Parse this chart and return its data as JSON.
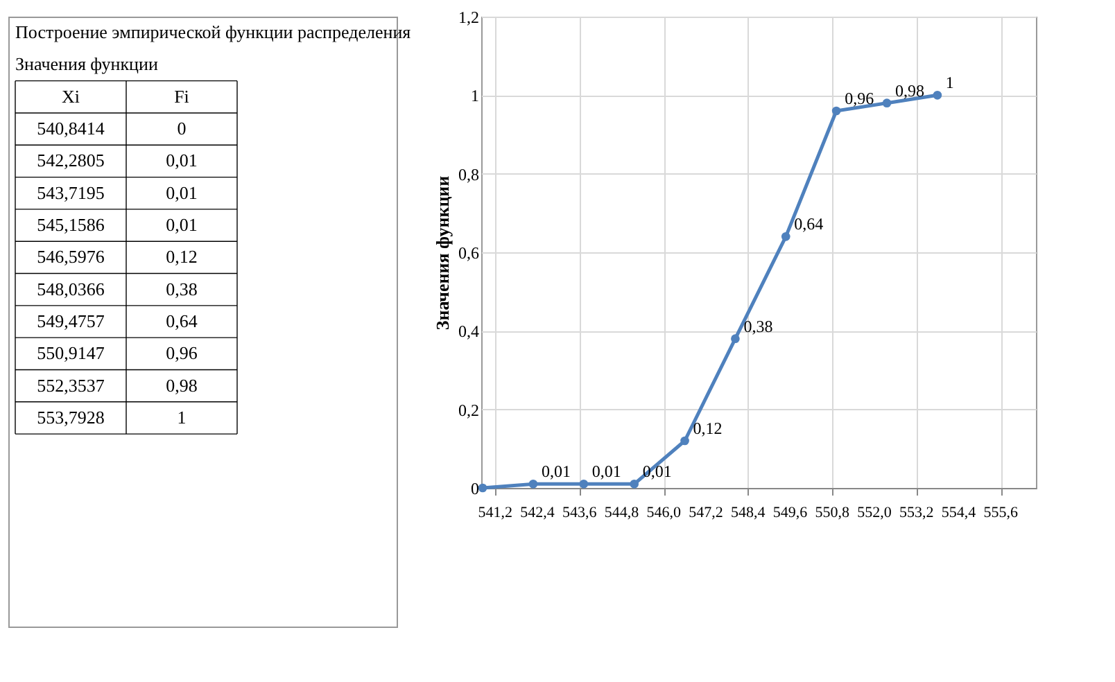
{
  "chart_data": [
    {
      "type": "other",
      "title": "Построение эмпирической функции распределения",
      "annotations": [
        "Значения функции",
        "Xi",
        "Fi",
        "540,8414",
        "0",
        "542,2805",
        "0,01",
        "543,7195",
        "0,01",
        "545,1586",
        "0,01",
        "546,5976",
        "0,12",
        "548,0366",
        "0,38",
        "549,4757",
        "0,64",
        "550,9147",
        "0,96",
        "552,3537",
        "0,98",
        "553,7928",
        "1"
      ]
    },
    {
      "type": "line",
      "ylabel": "Значения функции",
      "x": [
        540.8414,
        542.2805,
        543.7195,
        545.1586,
        546.5976,
        548.0366,
        549.4757,
        550.9147,
        552.3537,
        553.7928
      ],
      "values": [
        0,
        0.01,
        0.01,
        0.01,
        0.12,
        0.38,
        0.64,
        0.96,
        0.98,
        1
      ],
      "value_labels": [
        null,
        "0,01",
        "0,01",
        "0,01",
        "0,12",
        "0,38",
        "0,64",
        "0,96",
        "0,98",
        "1"
      ],
      "color": "#4f81bd",
      "marker": "circle",
      "grid": true,
      "xlim": [
        540.8,
        556.6
      ],
      "xticks": [
        {
          "value": 541.2,
          "label": "541,2"
        },
        {
          "value": 542.4,
          "label": "542,4"
        },
        {
          "value": 543.6,
          "label": "543,6"
        },
        {
          "value": 544.8,
          "label": "544,8"
        },
        {
          "value": 546.0,
          "label": "546,0"
        },
        {
          "value": 547.2,
          "label": "547,2"
        },
        {
          "value": 548.4,
          "label": "548,4"
        },
        {
          "value": 549.6,
          "label": "549,6"
        },
        {
          "value": 550.8,
          "label": "550,8"
        },
        {
          "value": 552.0,
          "label": "552,0"
        },
        {
          "value": 553.2,
          "label": "553,2"
        },
        {
          "value": 554.4,
          "label": "554,4"
        },
        {
          "value": 555.6,
          "label": "555,6"
        }
      ],
      "ylim": [
        0,
        1.2
      ],
      "yticks": [
        0,
        {
          "value": 0.2,
          "label": "0,2"
        },
        {
          "value": 0.4,
          "label": "0,4"
        },
        {
          "value": 0.6,
          "label": "0,6"
        },
        {
          "value": 0.8,
          "label": "0,8"
        },
        1,
        {
          "value": 1.2,
          "label": "1,2"
        }
      ]
    }
  ]
}
